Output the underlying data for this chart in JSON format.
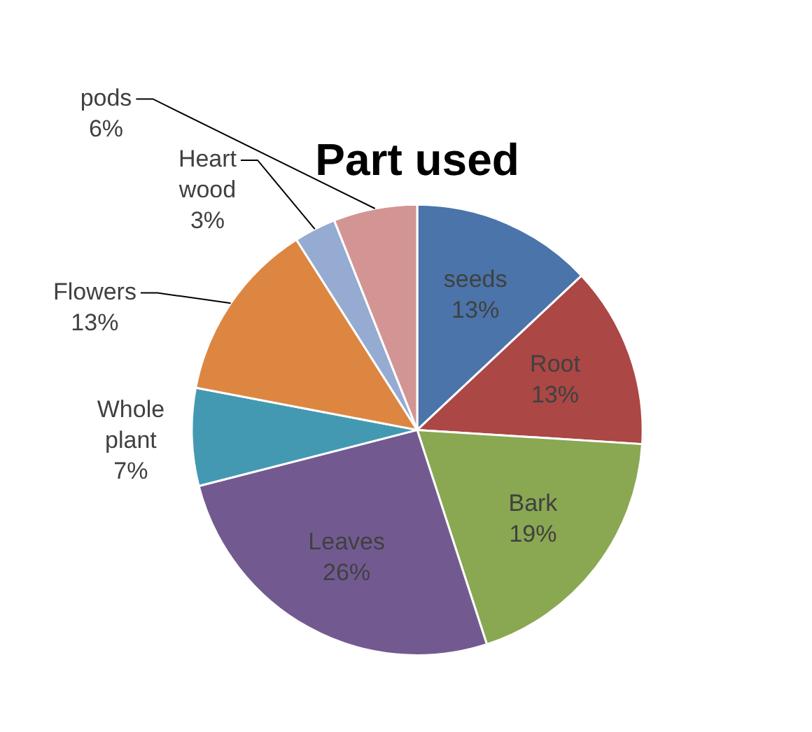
{
  "chart_data": {
    "type": "pie",
    "title": "Part used",
    "categories": [
      "seeds",
      "Root",
      "Bark",
      "Leaves",
      "Whole plant",
      "Flowers",
      "Heart wood",
      "pods"
    ],
    "values": [
      13,
      13,
      19,
      26,
      7,
      13,
      3,
      6
    ],
    "value_labels": [
      "13%",
      "13%",
      "19%",
      "26%",
      "7%",
      "13%",
      "3%",
      "6%"
    ],
    "colors": [
      "#4a74aa",
      "#ab4744",
      "#8aa752",
      "#725a91",
      "#4499b2",
      "#dd8641",
      "#95abd2",
      "#d39593"
    ],
    "legend": false
  }
}
